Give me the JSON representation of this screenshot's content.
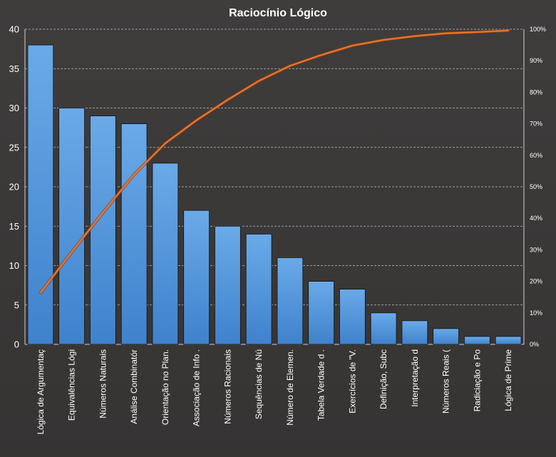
{
  "chart_data": {
    "type": "bar",
    "title": "Raciocínio  Lógico",
    "categories": [
      "Lógica de Argumentaç",
      "Equivalências Lógi",
      "Números Naturais",
      "Análise Combinatór",
      "Orientação no Plan.",
      "Associação de Info .",
      "Números Racionais",
      "Sequências de Nú",
      "Número  de Elemen.",
      "Tabela Verdade d .",
      "Exercícios de \"V.",
      "Definição, Subc",
      "Interpretação d",
      "Números  Reais (",
      "Radiciação e Po",
      "Lógica de Prime"
    ],
    "series": [
      {
        "type": "bar",
        "values": [
          38,
          30,
          29,
          28,
          23,
          17,
          15,
          14,
          11,
          8,
          7,
          4,
          3,
          2,
          1,
          1
        ]
      },
      {
        "type": "line",
        "axis": "secondary",
        "values": [
          16.4,
          29.3,
          41.8,
          53.9,
          63.8,
          71.1,
          77.6,
          83.6,
          88.4,
          91.8,
          94.8,
          96.6,
          97.8,
          98.7,
          99.1,
          99.6
        ]
      }
    ],
    "ylim": [
      0,
      40
    ],
    "yticks": [
      "0",
      "5",
      "10",
      "15",
      "20",
      "25",
      "30",
      "35",
      "40"
    ],
    "y2lim": [
      0,
      100
    ],
    "y2ticks": [
      "0%",
      "10%",
      "20%",
      "30%",
      "40%",
      "50%",
      "60%",
      "70%",
      "80%",
      "90%",
      "100%"
    ],
    "grid": true,
    "bar_color": "#4a8fd6",
    "line_color": "#e8712a",
    "background": "#3a3a3a"
  }
}
